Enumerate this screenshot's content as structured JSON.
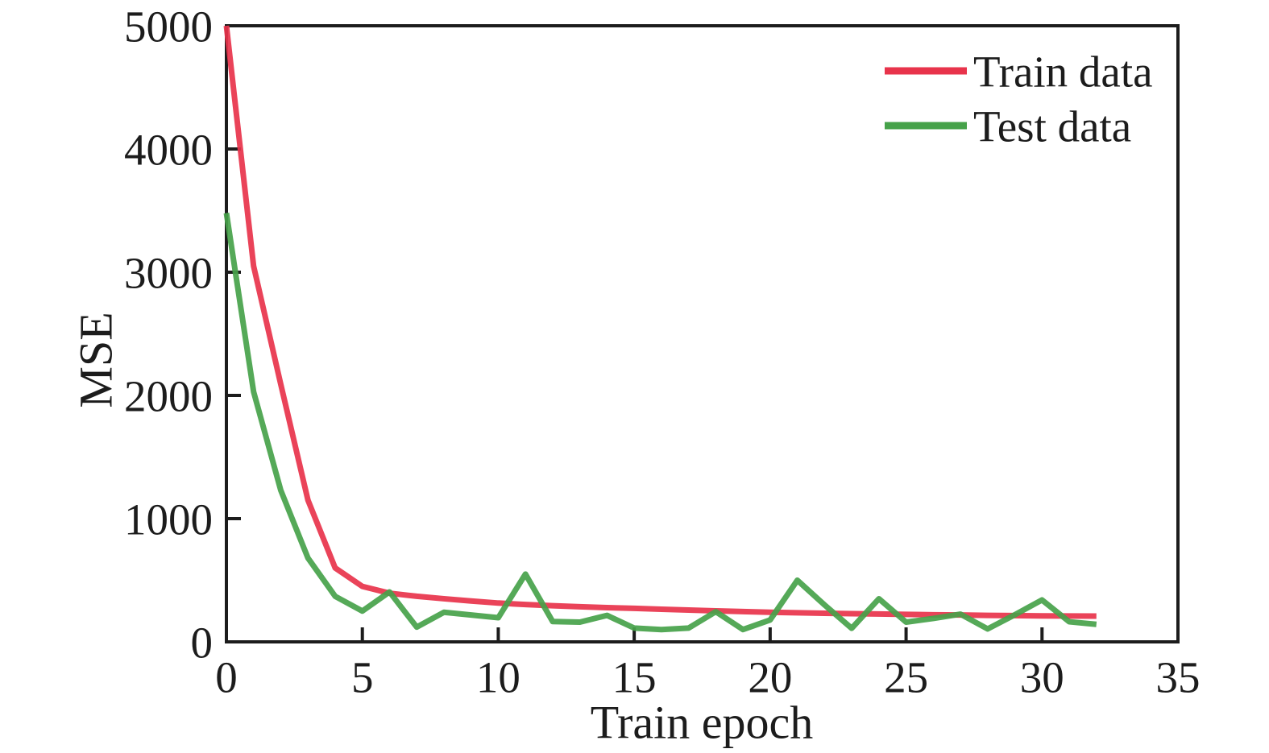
{
  "style": {
    "background": "#ffffff",
    "axis_color": "#1c1c1c",
    "text_color": "#1c1c1c"
  },
  "chart_data": {
    "type": "line",
    "xlabel": "Train epoch",
    "ylabel": "MSE",
    "xlim": [
      0,
      35
    ],
    "ylim": [
      0,
      5000
    ],
    "xticks": [
      0,
      5,
      10,
      15,
      20,
      25,
      30,
      35
    ],
    "yticks": [
      0,
      1000,
      2000,
      3000,
      4000,
      5000
    ],
    "grid": false,
    "legend_position": "top-right",
    "x": [
      0,
      1,
      2,
      3,
      4,
      5,
      6,
      7,
      8,
      9,
      10,
      11,
      12,
      13,
      14,
      15,
      16,
      17,
      18,
      19,
      20,
      21,
      22,
      23,
      24,
      25,
      26,
      27,
      28,
      29,
      30,
      31,
      32
    ],
    "series": [
      {
        "name": "Train data",
        "color": "#e8334b",
        "values": [
          5000,
          3050,
          2090,
          1150,
          600,
          450,
          395,
          370,
          350,
          332,
          315,
          303,
          293,
          285,
          278,
          272,
          265,
          258,
          252,
          246,
          240,
          236,
          232,
          229,
          226,
          223,
          220,
          218,
          215,
          213,
          211,
          210,
          209
        ]
      },
      {
        "name": "Test data",
        "color": "#46a24a",
        "values": [
          3480,
          2030,
          1230,
          680,
          370,
          250,
          405,
          120,
          240,
          218,
          196,
          550,
          165,
          160,
          215,
          112,
          100,
          112,
          245,
          100,
          178,
          500,
          300,
          110,
          350,
          160,
          190,
          225,
          105,
          220,
          340,
          163,
          142
        ]
      }
    ]
  }
}
